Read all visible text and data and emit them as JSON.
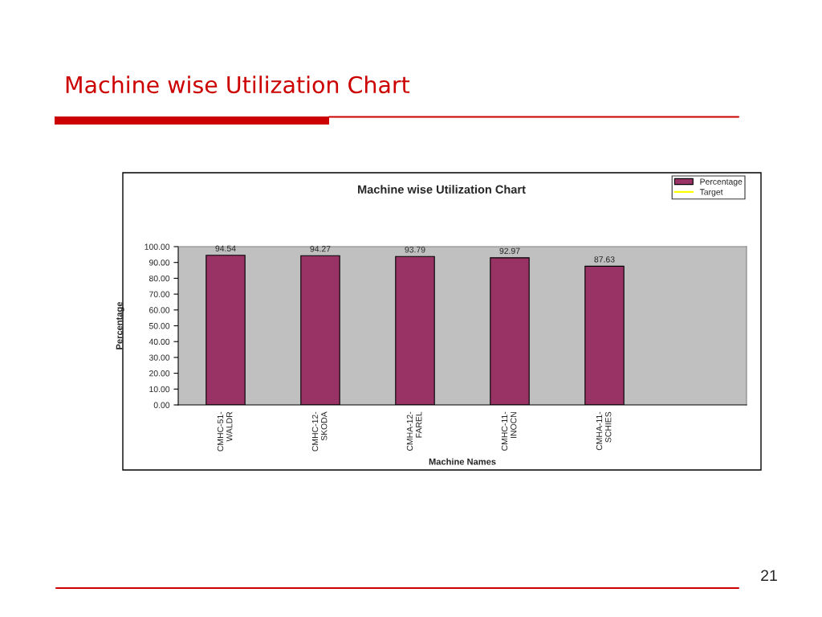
{
  "chart_data": {
    "type": "bar",
    "title": "Machine wise Utilization Chart",
    "subtitle": "Machine wise Utilization Chart",
    "xlabel": "Machine Names",
    "ylabel": "Percentage",
    "categories": [
      "CMHC-51-\nWALDR",
      "CMHC-12-\nSKODA",
      "CMHA-12-\nFAREL",
      "CMHC-11-\nINOCN",
      "CMHA-11-\nSCHIES",
      null
    ],
    "series": [
      {
        "name": "Percentage",
        "color": "#993366",
        "values": [
          94.54,
          94.27,
          93.79,
          92.97,
          87.63,
          null
        ]
      },
      {
        "name": "Target",
        "type": "line",
        "color": "#ffff00",
        "values": [
          null,
          null,
          null,
          null,
          null,
          null
        ]
      }
    ],
    "ylim": [
      0,
      100
    ],
    "yticks": [
      {
        "value": 0,
        "label": "0.00"
      },
      {
        "value": 10,
        "label": "10.00"
      },
      {
        "value": 20,
        "label": "20.00"
      },
      {
        "value": 30,
        "label": "30.00"
      },
      {
        "value": 40,
        "label": "40.00"
      },
      {
        "value": 50,
        "label": "50.00"
      },
      {
        "value": 60,
        "label": "60.00"
      },
      {
        "value": 70,
        "label": "70.00"
      },
      {
        "value": 80,
        "label": "80.00"
      },
      {
        "value": 90,
        "label": "90.00"
      },
      {
        "value": 100,
        "label": "100.00"
      }
    ],
    "data_labels": true,
    "legend": "top right",
    "annotations": [
      "21"
    ]
  }
}
